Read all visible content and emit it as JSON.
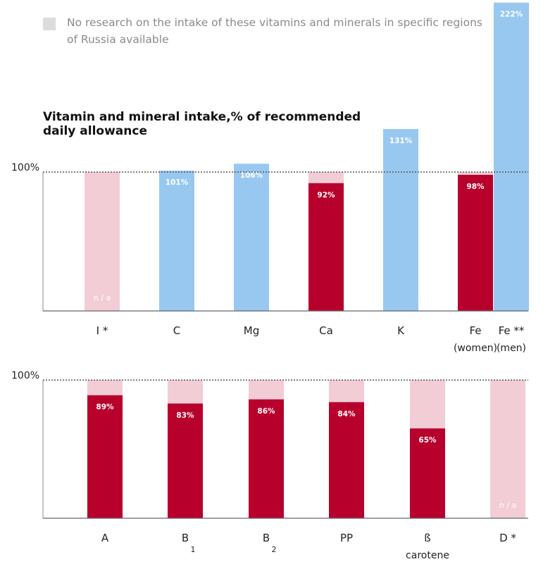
{
  "legend": {
    "label": "No research on the intake of these vitamins and minerals in specific regions of Russia available",
    "color": "#dcdcdc"
  },
  "colors": {
    "red": "#b8002c",
    "pink": "#f2cdd5",
    "blue": "#98c8f0",
    "gray": "#dcdcdc"
  },
  "chart_data": [
    {
      "type": "bar",
      "title": "Vitamin and mineral intake,% of recommended daily allowance",
      "reference_line": {
        "value": 100,
        "label": "100%"
      },
      "categories": [
        "I *",
        "C",
        "Mg",
        "Ca",
        "K",
        "Fe (women)",
        "Fe ** (men)"
      ],
      "bars": [
        {
          "name": "I *",
          "sub": "",
          "value": null,
          "label": "n / a",
          "color": "pink",
          "background": false
        },
        {
          "name": "C",
          "sub": "",
          "value": 101,
          "label": "101%",
          "color": "blue",
          "background": false
        },
        {
          "name": "Mg",
          "sub": "",
          "value": 106,
          "label": "106%",
          "color": "blue",
          "background": false
        },
        {
          "name": "Ca",
          "sub": "",
          "value": 92,
          "label": "92%",
          "color": "red",
          "background": true
        },
        {
          "name": "K",
          "sub": "",
          "value": 131,
          "label": "131%",
          "color": "blue",
          "background": false
        },
        {
          "name": "Fe",
          "sub": "(women)",
          "value": 98,
          "label": "98%",
          "color": "red",
          "background": true
        },
        {
          "name": "Fe **",
          "sub": "(men)",
          "value": 222,
          "label": "222%",
          "color": "blue",
          "background": false
        }
      ]
    },
    {
      "type": "bar",
      "title": "",
      "reference_line": {
        "value": 100,
        "label": "100%"
      },
      "categories": [
        "A",
        "B 1",
        "B 2",
        "PP",
        "ß carotene",
        "D *"
      ],
      "bars": [
        {
          "name": "A",
          "sub": "",
          "subscript": "",
          "value": 89,
          "label": "89%",
          "color": "red",
          "background": true
        },
        {
          "name": "B",
          "sub": "",
          "subscript": "1",
          "value": 83,
          "label": "83%",
          "color": "red",
          "background": true
        },
        {
          "name": "B",
          "sub": "",
          "subscript": "2",
          "value": 86,
          "label": "86%",
          "color": "red",
          "background": true
        },
        {
          "name": "PP",
          "sub": "",
          "subscript": "",
          "value": 84,
          "label": "84%",
          "color": "red",
          "background": true
        },
        {
          "name": "ß",
          "sub": "carotene",
          "subscript": "",
          "value": 65,
          "label": "65%",
          "color": "red",
          "background": true
        },
        {
          "name": "D *",
          "sub": "",
          "subscript": "",
          "value": null,
          "label": "n / a",
          "color": "pink",
          "background": false
        }
      ]
    }
  ]
}
